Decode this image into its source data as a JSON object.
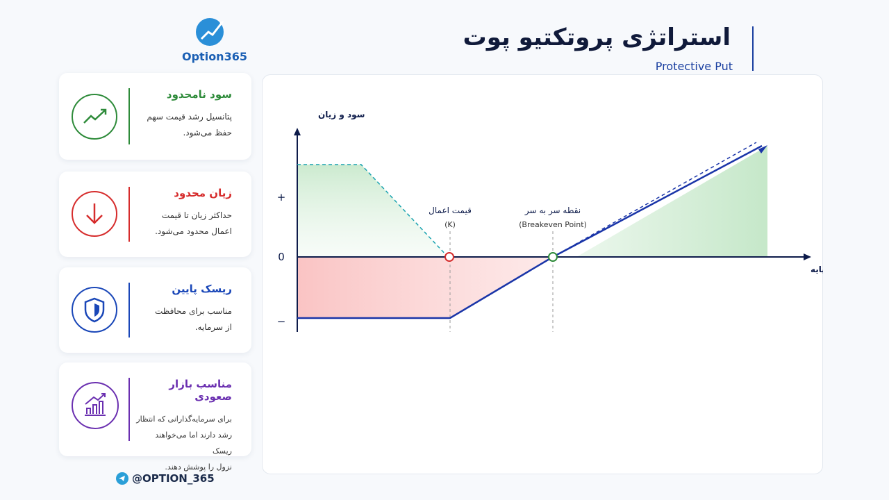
{
  "header": {
    "logo": "Option365",
    "title": "استراتژی پروتکتیو پوت",
    "subtitle": "Protective Put"
  },
  "cards": [
    {
      "title": "سود نامحدود",
      "lines": [
        "پتانسیل رشد قیمت سهم",
        "حفظ می‌شود."
      ]
    },
    {
      "title": "زیان محدود",
      "lines": [
        "حداکثر زیان تا قیمت",
        "اعمال محدود می‌شود."
      ]
    },
    {
      "title": "ریسک پایین",
      "lines": [
        "مناسب برای محافظت",
        "از سرمایه."
      ]
    },
    {
      "title": "مناسب بازار صعودی",
      "lines": [
        "برای سرمایه‌گذارانی که انتظار",
        "رشد دارند اما می‌خواهند ریسک",
        "نزول را پوشش دهند."
      ]
    }
  ],
  "diagram": {
    "y_axis_label": "سود و زیان",
    "x_axis_label": "قیمت دارایی پایه",
    "y_labels": [
      "+",
      0,
      "−"
    ],
    "strike_label": "قیمت اعمال",
    "strike_sub": "(K)",
    "breakeven_label": "نقطه سر به سر",
    "breakeven_sub": "(Breakeven Point)"
  },
  "footer": {
    "handle": "@OPTION_365"
  }
}
